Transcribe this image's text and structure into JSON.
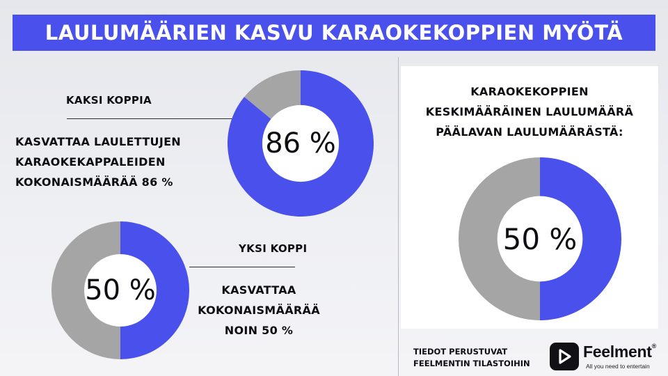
{
  "title": "LAULUMÄÄRIEN KASVU KARAOKEKOPPIEN MYÖTÄ",
  "colors": {
    "accent": "#4a50ec",
    "track": "#a5a5a5",
    "background": "#eceef2",
    "panel": "#ffffff",
    "text": "#0d0d12"
  },
  "two_booths": {
    "heading": "KAKSI KOPPIA",
    "description_lines": [
      "KASVATTAA LAULETTUJEN",
      "KARAOKEKAPPALEIDEN",
      "KOKONAISMÄÄRÄÄ 86 %"
    ]
  },
  "one_booth": {
    "heading": "YKSI KOPPI",
    "description_lines": [
      "KASVATTAA",
      "KOKONAISMÄÄRÄÄ",
      "NOIN 50 %"
    ]
  },
  "average_panel": {
    "title_lines": [
      "KARAOKEKOPPIEN",
      "KESKIMÄÄRÄINEN LAULUMÄÄRÄ",
      "PÄÄLAVAN LAULUMÄÄRÄSTÄ:"
    ]
  },
  "source_lines": [
    "TIEDOT PERUSTUVAT",
    "FEELMENTIN TILASTOIHIN"
  ],
  "brand": {
    "name": "Feelment",
    "trademark": "®",
    "tagline": "All you need to entertain",
    "logo_icon": "play-icon"
  },
  "chart_data": [
    {
      "type": "pie",
      "variant": "donut",
      "value_percent": 86,
      "label": "86 %",
      "slices": [
        {
          "value": 86,
          "color": "#4a50ec"
        },
        {
          "value": 14,
          "color": "#a5a5a5"
        }
      ]
    },
    {
      "type": "pie",
      "variant": "donut",
      "value_percent": 50,
      "label": "50 %",
      "slices": [
        {
          "value": 50,
          "color": "#4a50ec"
        },
        {
          "value": 50,
          "color": "#a5a5a5"
        }
      ]
    },
    {
      "type": "pie",
      "variant": "donut",
      "value_percent": 50,
      "label": "50 %",
      "slices": [
        {
          "value": 50,
          "color": "#4a50ec"
        },
        {
          "value": 50,
          "color": "#a5a5a5"
        }
      ]
    }
  ]
}
